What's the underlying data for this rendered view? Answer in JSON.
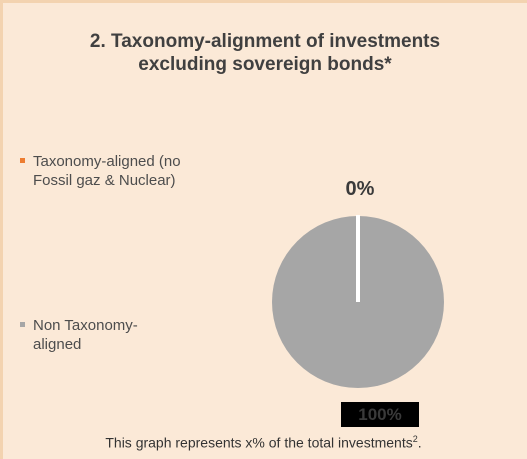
{
  "chart_data": {
    "type": "pie",
    "title": "2. Taxonomy-alignment of investments excluding sovereign bonds*",
    "slices": [
      {
        "name": "Taxonomy-aligned (no Fossil gaz & Nuclear)",
        "value": 0,
        "label": "0%",
        "color": "#ed7d31"
      },
      {
        "name": "Non Taxonomy-aligned",
        "value": 100,
        "label": "100%",
        "color": "#a6a6a6"
      }
    ],
    "legend": "left"
  },
  "legend_labels": {
    "aligned": "Taxonomy-aligned (no\nFossil gaz & Nuclear)",
    "non_aligned": "Non Taxonomy-\naligned"
  },
  "footnote": {
    "text": "This graph represents x% of the total investments",
    "superscript": "2",
    "end": "."
  }
}
